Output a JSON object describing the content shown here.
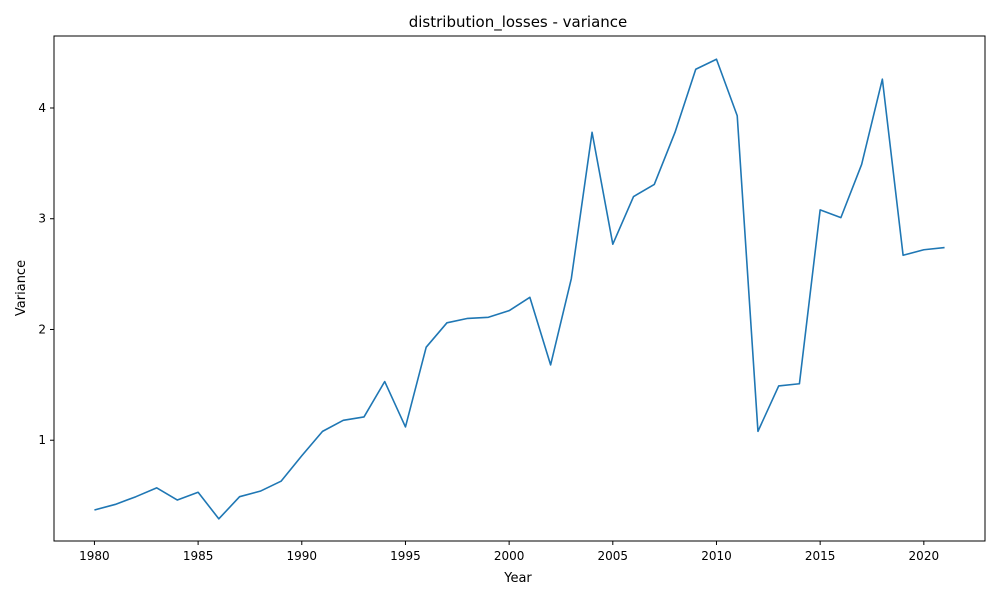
{
  "chart_data": {
    "type": "line",
    "title": "distribution_losses - variance",
    "xlabel": "Year",
    "ylabel": "Variance",
    "xlim": [
      1978.05,
      2022.95
    ],
    "ylim": [
      0.09,
      4.65
    ],
    "xticks": [
      1980,
      1985,
      1990,
      1995,
      2000,
      2005,
      2010,
      2015,
      2020
    ],
    "yticks": [
      1,
      2,
      3,
      4
    ],
    "grid": false,
    "color": "#1f77b4",
    "series": [
      {
        "x": [
          1980,
          1981,
          1982,
          1983,
          1984,
          1985,
          1986,
          1987,
          1988,
          1989,
          1990,
          1991,
          1992,
          1993,
          1994,
          1995,
          1996,
          1997,
          1998,
          1999,
          2000,
          2001,
          2002,
          2003,
          2004,
          2005,
          2006,
          2007,
          2008,
          2009,
          2010,
          2011,
          2012,
          2013,
          2014,
          2015,
          2016,
          2017,
          2018,
          2019,
          2020,
          2021
        ],
        "values": [
          0.37,
          0.42,
          0.49,
          0.57,
          0.46,
          0.53,
          0.29,
          0.49,
          0.54,
          0.63,
          0.86,
          1.08,
          1.18,
          1.21,
          1.53,
          1.12,
          1.84,
          2.06,
          2.1,
          2.11,
          2.17,
          2.29,
          1.68,
          2.46,
          3.78,
          2.77,
          3.2,
          3.31,
          3.78,
          4.35,
          4.44,
          3.93,
          1.08,
          1.49,
          1.51,
          3.08,
          3.01,
          3.49,
          4.26,
          2.67,
          2.72,
          2.74
        ]
      }
    ]
  }
}
